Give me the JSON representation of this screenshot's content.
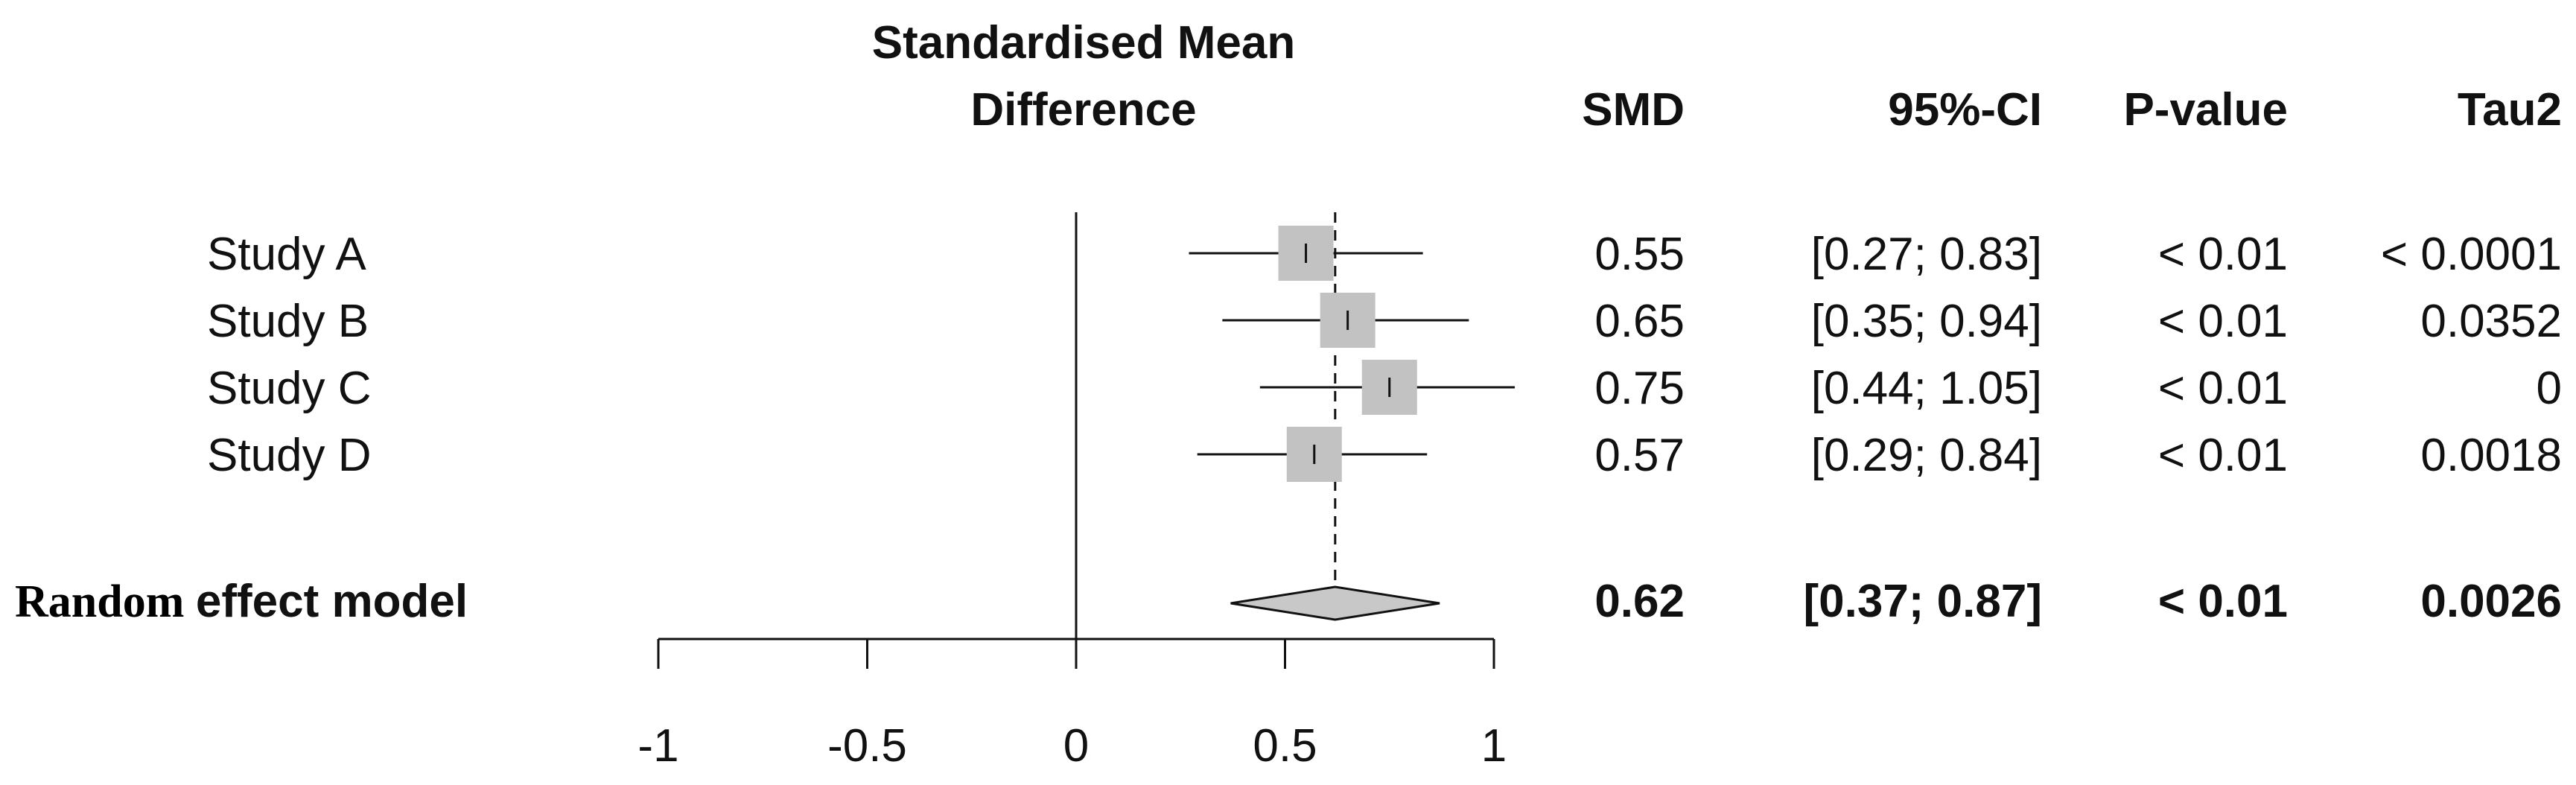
{
  "chart_data": {
    "type": "forest",
    "title": "Standardised Mean Difference",
    "columns": {
      "title_line1": "Standardised Mean",
      "title_line2": "Difference",
      "smd": "SMD",
      "ci": "95%-CI",
      "pvalue": "P-value",
      "tau2": "Tau2"
    },
    "studies": [
      {
        "label": "Study A",
        "smd": 0.55,
        "lower": 0.27,
        "upper": 0.83,
        "smd_text": "0.55",
        "ci_text": "[0.27; 0.83]",
        "p_text": "< 0.01",
        "tau2_text": "< 0.0001"
      },
      {
        "label": "Study B",
        "smd": 0.65,
        "lower": 0.35,
        "upper": 0.94,
        "smd_text": "0.65",
        "ci_text": "[0.35; 0.94]",
        "p_text": "< 0.01",
        "tau2_text": "0.0352"
      },
      {
        "label": "Study C",
        "smd": 0.75,
        "lower": 0.44,
        "upper": 1.05,
        "smd_text": "0.75",
        "ci_text": "[0.44; 1.05]",
        "p_text": "< 0.01",
        "tau2_text": "0"
      },
      {
        "label": "Study D",
        "smd": 0.57,
        "lower": 0.29,
        "upper": 0.84,
        "smd_text": "0.57",
        "ci_text": "[0.29; 0.84]",
        "p_text": "< 0.01",
        "tau2_text": "0.0018"
      }
    ],
    "pooled": {
      "label_part1": "Random",
      "label_part2": "effect model",
      "smd": 0.62,
      "lower": 0.37,
      "upper": 0.87,
      "smd_text": "0.62",
      "ci_text": "[0.37; 0.87]",
      "p_text": "< 0.01",
      "tau2_text": "0.0026"
    },
    "xlim": [
      -1,
      1
    ],
    "xticks": [
      -1,
      -0.5,
      0,
      0.5,
      1
    ],
    "xtick_labels": [
      "-1",
      "-0.5",
      "0",
      "0.5",
      "1"
    ],
    "null_line": 0
  },
  "colors": {
    "square": "#c2c2c2",
    "diamond": "#c8c8c8",
    "line": "#111111"
  }
}
